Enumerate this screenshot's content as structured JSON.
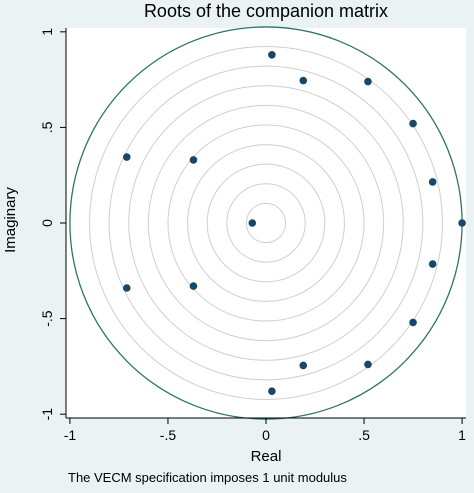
{
  "chart_data": {
    "type": "scatter",
    "title": "Roots of the companion matrix",
    "xlabel": "Real",
    "ylabel": "Imaginary",
    "note": "The VECM specification imposes 1 unit modulus",
    "xlim": [
      -1.02,
      1.02
    ],
    "ylim": [
      -1.02,
      1.02
    ],
    "x_ticks": [
      {
        "value": -1,
        "label": "-1"
      },
      {
        "value": -0.5,
        "label": "-.5"
      },
      {
        "value": 0,
        "label": "0"
      },
      {
        "value": 0.5,
        "label": ".5"
      },
      {
        "value": 1,
        "label": "1"
      }
    ],
    "y_ticks": [
      {
        "value": 1,
        "label": "1"
      },
      {
        "value": 0.5,
        "label": ".5"
      },
      {
        "value": 0,
        "label": "0"
      },
      {
        "value": -0.5,
        "label": "-.5"
      },
      {
        "value": -1,
        "label": "-1"
      }
    ],
    "unit_circle_radius": 1,
    "reference_circle_radii": [
      0.1,
      0.2,
      0.3,
      0.4,
      0.5,
      0.6,
      0.7,
      0.8,
      0.9
    ],
    "points": [
      {
        "x": 0.03,
        "y": 0.88
      },
      {
        "x": 0.19,
        "y": 0.745
      },
      {
        "x": 0.52,
        "y": 0.74
      },
      {
        "x": 0.75,
        "y": 0.52
      },
      {
        "x": 0.85,
        "y": 0.215
      },
      {
        "x": 1.0,
        "y": 0.0
      },
      {
        "x": 0.85,
        "y": -0.215
      },
      {
        "x": 0.75,
        "y": -0.52
      },
      {
        "x": 0.52,
        "y": -0.74
      },
      {
        "x": 0.19,
        "y": -0.745
      },
      {
        "x": 0.03,
        "y": -0.88
      },
      {
        "x": -0.07,
        "y": 0.0
      },
      {
        "x": -0.37,
        "y": 0.33
      },
      {
        "x": -0.37,
        "y": -0.33
      },
      {
        "x": -0.71,
        "y": 0.345
      },
      {
        "x": -0.71,
        "y": -0.34
      }
    ],
    "colors": {
      "background": "#eaf2f3",
      "plot_background": "#ffffff",
      "unit_circle": "#2e7564",
      "reference_circles": "#cfcfcf",
      "points": "#1a4767",
      "axis": "#000000"
    }
  }
}
